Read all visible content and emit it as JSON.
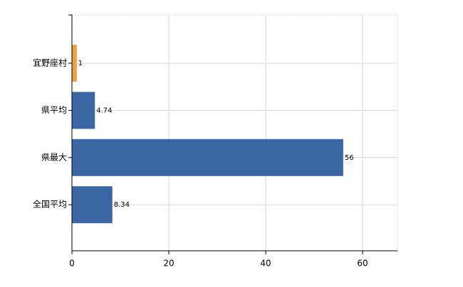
{
  "chart_data": {
    "type": "hbar",
    "categories": [
      "宜野座村",
      "県平均",
      "県最大",
      "全国平均"
    ],
    "values": [
      1,
      4.74,
      56,
      8.34
    ],
    "colors": [
      "#f0a040",
      "#3a67a3",
      "#3a67a3",
      "#3a67a3"
    ],
    "xlim": [
      0,
      67.2
    ],
    "xticks": [
      0,
      20,
      40,
      60
    ],
    "grid": true
  }
}
